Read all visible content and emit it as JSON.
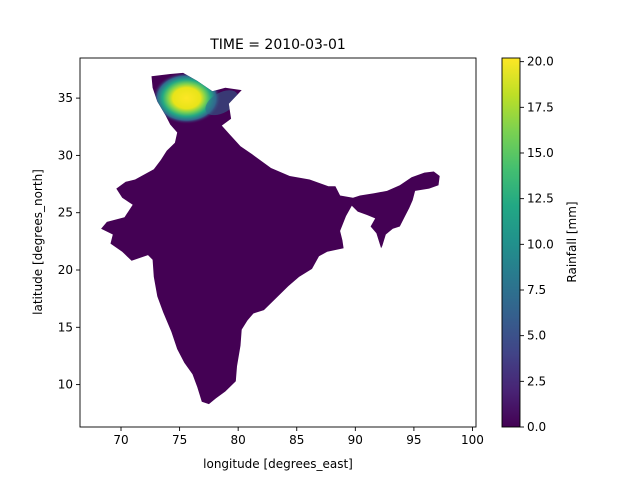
{
  "title": "TIME = 2010-03-01",
  "chart_data": {
    "type": "heatmap",
    "title": "TIME = 2010-03-01",
    "xlabel": "longitude [degrees_east]",
    "ylabel": "latitude [degrees_north]",
    "xlim": [
      66.5,
      100.3
    ],
    "ylim": [
      6.3,
      38.5
    ],
    "xticks": [
      70,
      75,
      80,
      85,
      90,
      95,
      100
    ],
    "yticks": [
      10,
      15,
      20,
      25,
      30,
      35
    ],
    "colorbar": {
      "label": "Rainfall [mm]",
      "range": [
        0.0,
        20.2
      ],
      "ticks": [
        0.0,
        2.5,
        5.0,
        7.5,
        10.0,
        12.5,
        15.0,
        17.5,
        20.0
      ],
      "tick_labels": [
        "0.0",
        "2.5",
        "5.0",
        "7.5",
        "10.0",
        "12.5",
        "15.0",
        "17.5",
        "20.0"
      ],
      "colormap": "viridis"
    },
    "region_fill_value": 0.0,
    "india_outline_lonlat": [
      [
        72.6,
        36.9
      ],
      [
        74.2,
        37.1
      ],
      [
        75.3,
        37.2
      ],
      [
        76.5,
        36.5
      ],
      [
        77.8,
        35.6
      ],
      [
        78.9,
        35.9
      ],
      [
        80.3,
        35.7
      ],
      [
        79.2,
        34.5
      ],
      [
        79.4,
        33.2
      ],
      [
        78.6,
        32.6
      ],
      [
        79.3,
        31.8
      ],
      [
        80.2,
        30.8
      ],
      [
        81.2,
        30.1
      ],
      [
        82.8,
        28.9
      ],
      [
        84.4,
        28.2
      ],
      [
        86.1,
        27.9
      ],
      [
        87.7,
        27.3
      ],
      [
        88.3,
        27.3
      ],
      [
        88.7,
        26.5
      ],
      [
        89.8,
        26.3
      ],
      [
        90.4,
        26.5
      ],
      [
        91.6,
        26.7
      ],
      [
        92.7,
        26.9
      ],
      [
        93.8,
        27.4
      ],
      [
        94.8,
        28.1
      ],
      [
        95.9,
        28.5
      ],
      [
        96.7,
        28.6
      ],
      [
        97.2,
        28.2
      ],
      [
        97.1,
        27.4
      ],
      [
        96.3,
        27.1
      ],
      [
        95.1,
        26.9
      ],
      [
        94.9,
        26.1
      ],
      [
        94.6,
        25.4
      ],
      [
        94.2,
        24.6
      ],
      [
        93.8,
        23.8
      ],
      [
        93.2,
        23.6
      ],
      [
        92.6,
        23.1
      ],
      [
        92.3,
        22.1
      ],
      [
        92.2,
        21.9
      ],
      [
        91.8,
        23.2
      ],
      [
        91.3,
        23.8
      ],
      [
        91.7,
        24.5
      ],
      [
        91.0,
        24.8
      ],
      [
        90.2,
        25.1
      ],
      [
        89.7,
        25.6
      ],
      [
        89.2,
        24.7
      ],
      [
        88.7,
        23.4
      ],
      [
        88.9,
        22.6
      ],
      [
        89.0,
        21.9
      ],
      [
        87.6,
        21.6
      ],
      [
        86.9,
        21.2
      ],
      [
        86.3,
        20.1
      ],
      [
        85.2,
        19.4
      ],
      [
        84.3,
        18.6
      ],
      [
        83.1,
        17.4
      ],
      [
        82.2,
        16.5
      ],
      [
        81.3,
        16.2
      ],
      [
        80.8,
        15.6
      ],
      [
        80.3,
        14.8
      ],
      [
        80.2,
        13.4
      ],
      [
        79.9,
        11.6
      ],
      [
        79.8,
        10.3
      ],
      [
        78.9,
        9.4
      ],
      [
        78.1,
        8.8
      ],
      [
        77.5,
        8.3
      ],
      [
        76.9,
        8.5
      ],
      [
        76.5,
        9.8
      ],
      [
        76.1,
        10.9
      ],
      [
        75.4,
        11.9
      ],
      [
        74.8,
        13.1
      ],
      [
        74.3,
        14.6
      ],
      [
        73.6,
        16.3
      ],
      [
        73.1,
        17.7
      ],
      [
        72.8,
        19.4
      ],
      [
        72.7,
        20.9
      ],
      [
        72.3,
        21.3
      ],
      [
        70.9,
        20.8
      ],
      [
        70.1,
        21.6
      ],
      [
        69.1,
        22.3
      ],
      [
        69.3,
        23.1
      ],
      [
        68.3,
        23.6
      ],
      [
        68.8,
        24.2
      ],
      [
        70.3,
        24.6
      ],
      [
        71.0,
        25.7
      ],
      [
        70.1,
        26.3
      ],
      [
        69.6,
        27.1
      ],
      [
        70.4,
        27.7
      ],
      [
        71.2,
        27.9
      ],
      [
        72.8,
        28.8
      ],
      [
        73.4,
        29.6
      ],
      [
        73.9,
        30.4
      ],
      [
        74.6,
        31.1
      ],
      [
        74.8,
        32.0
      ],
      [
        74.2,
        32.7
      ],
      [
        73.8,
        33.5
      ],
      [
        73.1,
        34.7
      ],
      [
        72.7,
        35.9
      ]
    ],
    "high_rainfall_zone": {
      "peak_mm": 20.0,
      "center_lonlat": [
        75.6,
        35.0
      ],
      "extent_lonlat": [
        [
          73.0,
          33.0
        ],
        [
          80.2,
          37.2
        ]
      ]
    }
  }
}
